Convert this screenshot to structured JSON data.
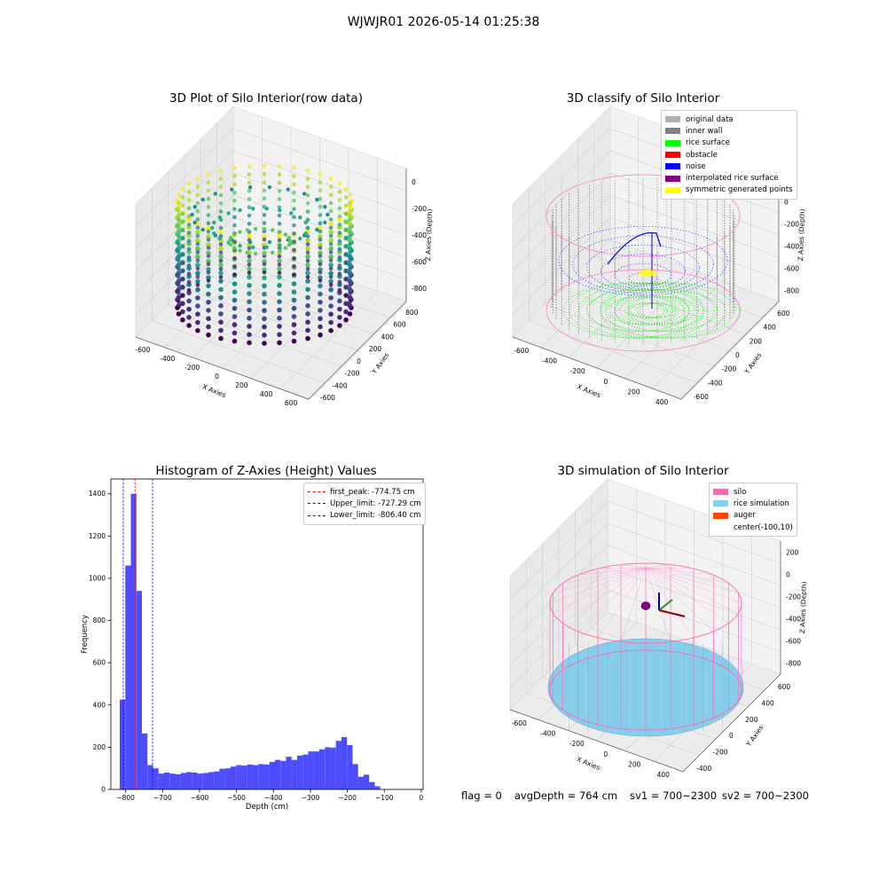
{
  "suptitle": "WJWJR01 2026-05-14 01:25:38",
  "footer": {
    "flag": "flag = 0",
    "avg_depth": "avgDepth = 764 cm",
    "sv1": "sv1 = 700~2300",
    "sv2": "sv2 = 700~2300"
  },
  "chart_data": [
    {
      "type": "scatter",
      "projection": "3d",
      "title": "3D Plot of Silo Interior(row data)",
      "xlabel": "X Axies",
      "ylabel": "Y Axies",
      "zlabel": "Z Axies (Depth)",
      "xticks": [
        "-600",
        "-400",
        "-200",
        "0",
        "200",
        "400",
        "600"
      ],
      "yticks": [
        "-600",
        "-400",
        "-200",
        "0",
        "200",
        "400",
        "600",
        "800"
      ],
      "zticks": [
        "-800",
        "-600",
        "-400",
        "-200",
        "0"
      ],
      "colormap": "viridis",
      "description_values": {
        "wall_radius": 480,
        "z_top": -150,
        "z_bottom": -840
      }
    },
    {
      "type": "scatter",
      "projection": "3d",
      "title": "3D classify of Silo Interior",
      "xlabel": "X Axies",
      "ylabel": "Y Axies",
      "zlabel": "Z Axies (Depth)",
      "xticks": [
        "-600",
        "-400",
        "-200",
        "0",
        "200",
        "400"
      ],
      "yticks": [
        "-600",
        "-400",
        "-200",
        "0",
        "200",
        "400",
        "600"
      ],
      "zticks": [
        "-800",
        "-600",
        "-400",
        "-200",
        "0",
        "200"
      ],
      "legend": [
        {
          "label": "original data",
          "color": "#b0b0b0"
        },
        {
          "label": "inner wall",
          "color": "#808080"
        },
        {
          "label": "rice surface",
          "color": "#00ff00"
        },
        {
          "label": "obstacle",
          "color": "#ff0000"
        },
        {
          "label": "noise",
          "color": "#0000ff"
        },
        {
          "label": "interpolated rice surface",
          "color": "#800080"
        },
        {
          "label": "symmetric generated points",
          "color": "#ffff00"
        }
      ],
      "legend_loc": "upper right"
    },
    {
      "type": "bar",
      "title": "Histogram of Z-Axies (Height) Values",
      "xlabel": "Depth (cm)",
      "ylabel": "Frequency",
      "xlim": [
        -840,
        5
      ],
      "ylim": [
        0,
        1470
      ],
      "xticks": [
        -800,
        -700,
        -600,
        -500,
        -400,
        -300,
        -200,
        -100,
        0
      ],
      "yticks": [
        0,
        200,
        400,
        600,
        800,
        1000,
        1200,
        1400
      ],
      "bin_width": 15,
      "bin_start": -816,
      "color": "#4d4dff",
      "values": [
        425,
        1060,
        1400,
        940,
        265,
        115,
        100,
        75,
        80,
        75,
        72,
        78,
        82,
        80,
        75,
        78,
        82,
        85,
        98,
        100,
        108,
        115,
        113,
        118,
        115,
        120,
        118,
        130,
        140,
        135,
        155,
        140,
        160,
        165,
        180,
        180,
        190,
        200,
        198,
        230,
        248,
        210,
        120,
        60,
        70,
        35,
        15
      ],
      "vlines": [
        {
          "label": "first_peak: -774.75 cm",
          "x": -774.75,
          "color": "#ff0000"
        },
        {
          "label": "Upper_limit: -727.29 cm",
          "x": -727.29,
          "color": "#0000ff"
        },
        {
          "label": "Lower_limit: -806.40 cm",
          "x": -806.4,
          "color": "#0000ff"
        }
      ],
      "legend_loc": "upper right"
    },
    {
      "type": "surface",
      "projection": "3d",
      "title": "3D simulation of Silo Interior",
      "xlabel": "X Axies",
      "ylabel": "Y Axies",
      "zlabel": "Z Axies (Depth)",
      "xticks": [
        "-600",
        "-400",
        "-200",
        "0",
        "200",
        "400"
      ],
      "yticks": [
        "-400",
        "-200",
        "0",
        "200",
        "400",
        "600"
      ],
      "zticks": [
        "-800",
        "-600",
        "-400",
        "-200",
        "0",
        "200"
      ],
      "legend": [
        {
          "label": "silo",
          "color": "#ff69b4"
        },
        {
          "label": "rice simulation",
          "color": "#87ceeb"
        },
        {
          "label": "auger",
          "color": "#ff4500"
        },
        {
          "label": "center(-100,10)",
          "color": "none"
        }
      ],
      "legend_loc": "upper right"
    }
  ]
}
